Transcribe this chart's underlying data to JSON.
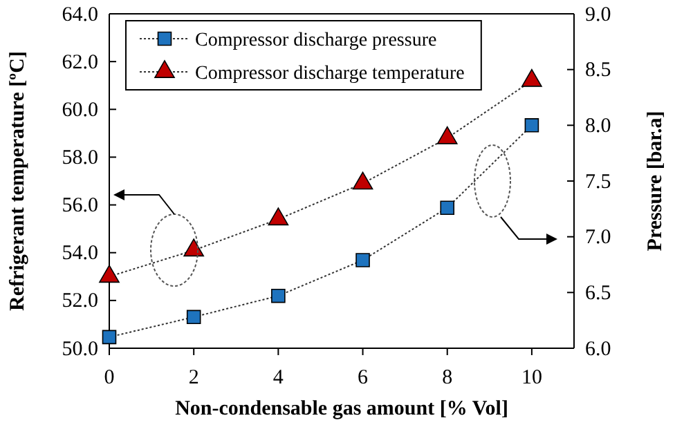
{
  "chart_data": {
    "type": "line",
    "x": [
      0,
      2,
      4,
      6,
      8,
      10
    ],
    "xlabel": "Non-condensable gas amount [% Vol]",
    "ylabel": "Refrigerant temperature [ºC]",
    "y2label": "Pressure [bar.a]",
    "xlim": [
      0,
      11
    ],
    "xticks": [
      0,
      2,
      4,
      6,
      8,
      10
    ],
    "ylim": [
      50,
      64
    ],
    "yticks": [
      {
        "value": 50,
        "label": "50.0"
      },
      {
        "value": 52,
        "label": "52.0"
      },
      {
        "value": 54,
        "label": "54.0"
      },
      {
        "value": 56,
        "label": "56.0"
      },
      {
        "value": 58,
        "label": "58.0"
      },
      {
        "value": 60,
        "label": "60.0"
      },
      {
        "value": 62,
        "label": "62.0"
      },
      {
        "value": 64,
        "label": "64.0"
      }
    ],
    "y2lim": [
      6,
      9
    ],
    "y2ticks": [
      {
        "value": 6,
        "label": "6.0"
      },
      {
        "value": 6.5,
        "label": "6.5"
      },
      {
        "value": 7,
        "label": "7.0"
      },
      {
        "value": 7.5,
        "label": "7.5"
      },
      {
        "value": 8,
        "label": "8.0"
      },
      {
        "value": 8.5,
        "label": "8.5"
      },
      {
        "value": 9,
        "label": "9.0"
      }
    ],
    "series": [
      {
        "name": "Compressor discharge pressure",
        "color": "#1e73be",
        "marker": "square",
        "axis": "y2",
        "values": [
          6.1,
          6.28,
          6.47,
          6.79,
          7.26,
          8.0
        ]
      },
      {
        "name": "Compressor discharge temperature",
        "color": "#c00000",
        "marker": "triangle",
        "values": [
          53.0,
          54.1,
          55.4,
          56.9,
          58.8,
          61.2
        ]
      }
    ],
    "line_style": "dotted",
    "legend": "top left",
    "grid": false
  }
}
